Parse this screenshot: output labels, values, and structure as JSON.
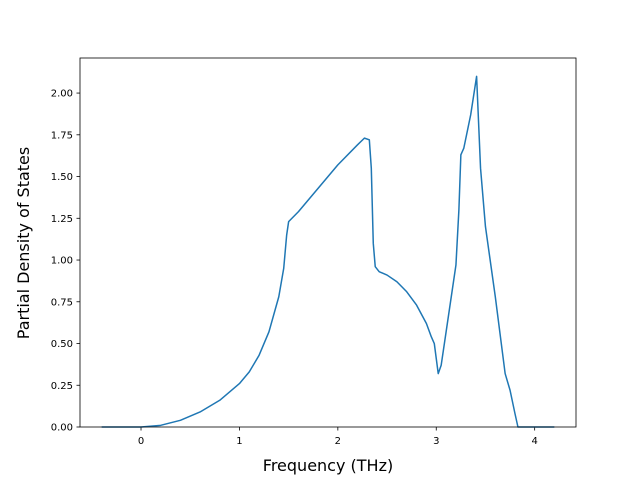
{
  "chart_data": {
    "type": "line",
    "xlabel": "Frequency (THz)",
    "ylabel": "Partial Density of States",
    "x": [
      -0.4,
      0,
      0.2,
      0.4,
      0.6,
      0.8,
      1.0,
      1.1,
      1.2,
      1.3,
      1.4,
      1.45,
      1.48,
      1.5,
      1.6,
      1.8,
      2.0,
      2.2,
      2.27,
      2.32,
      2.34,
      2.36,
      2.38,
      2.42,
      2.5,
      2.6,
      2.7,
      2.8,
      2.9,
      2.95,
      2.98,
      3.02,
      3.05,
      3.1,
      3.2,
      3.23,
      3.25,
      3.28,
      3.35,
      3.41,
      3.45,
      3.5,
      3.6,
      3.7,
      3.75,
      3.8,
      3.83,
      4.2
    ],
    "series": [
      {
        "color": "#1f77b4",
        "values": [
          0,
          0,
          0.01,
          0.04,
          0.09,
          0.16,
          0.26,
          0.33,
          0.43,
          0.57,
          0.78,
          0.95,
          1.15,
          1.23,
          1.29,
          1.43,
          1.57,
          1.69,
          1.73,
          1.72,
          1.55,
          1.1,
          0.96,
          0.93,
          0.91,
          0.87,
          0.81,
          0.73,
          0.62,
          0.54,
          0.5,
          0.32,
          0.37,
          0.57,
          0.97,
          1.3,
          1.63,
          1.67,
          1.87,
          2.1,
          1.55,
          1.2,
          0.78,
          0.32,
          0.22,
          0.08,
          0,
          0
        ]
      }
    ],
    "xlim": [
      -0.62,
      4.42
    ],
    "ylim": [
      0,
      2.21
    ],
    "xticks": [
      0,
      1,
      2,
      3,
      4
    ],
    "yticks": [
      {
        "value": 0,
        "label": "0.00"
      },
      {
        "value": 0.25,
        "label": "0.25"
      },
      {
        "value": 0.5,
        "label": "0.50"
      },
      {
        "value": 0.75,
        "label": "0.75"
      },
      {
        "value": 1.0,
        "label": "1.00"
      },
      {
        "value": 1.25,
        "label": "1.25"
      },
      {
        "value": 1.5,
        "label": "1.50"
      },
      {
        "value": 1.75,
        "label": "1.75"
      },
      {
        "value": 2.0,
        "label": "2.00"
      }
    ]
  }
}
